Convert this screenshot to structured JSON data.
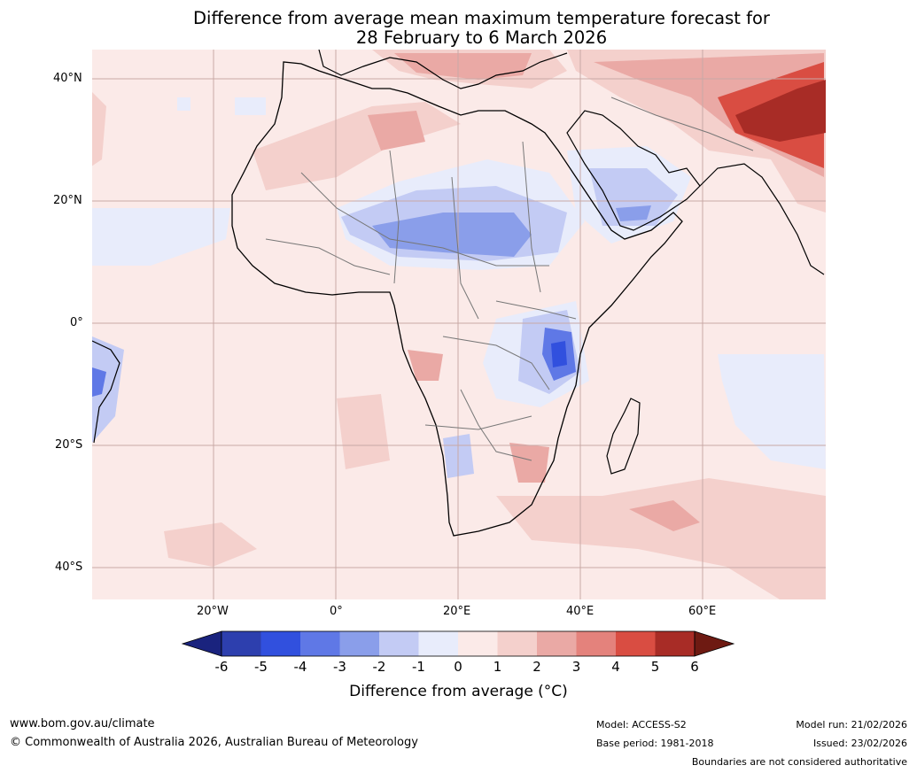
{
  "title": {
    "line1": "Difference from average mean maximum temperature forecast for",
    "line2": "28 February to 6 March 2026"
  },
  "axes": {
    "lat_labels": [
      "40°N",
      "20°N",
      "0°",
      "20°S",
      "40°S"
    ],
    "lon_labels": [
      "20°W",
      "0°",
      "20°E",
      "40°E",
      "60°E"
    ]
  },
  "colorbar": {
    "title": "Difference from average (°C)",
    "ticks": [
      "-6",
      "-5",
      "-4",
      "-3",
      "-2",
      "-1",
      "0",
      "1",
      "2",
      "3",
      "4",
      "5",
      "6"
    ],
    "colors": [
      "#1a237e",
      "#2d3fae",
      "#3150de",
      "#5f78e6",
      "#8a9eea",
      "#c3cbf4",
      "#e8ecfb",
      "#fbeae8",
      "#f4d0cc",
      "#eaa9a5",
      "#e4827c",
      "#d94d42",
      "#a82c26",
      "#6e1a12"
    ]
  },
  "footer": {
    "website": "www.bom.gov.au/climate",
    "copyright": "© Commonwealth of Australia 2026, Australian Bureau of Meteorology",
    "model": "Model: ACCESS-S2",
    "base_period": "Base period: 1981-2018",
    "model_run": "Model run: 21/02/2026",
    "issued": "Issued: 23/02/2026",
    "disclaimer": "Boundaries are not considered authoritative"
  }
}
